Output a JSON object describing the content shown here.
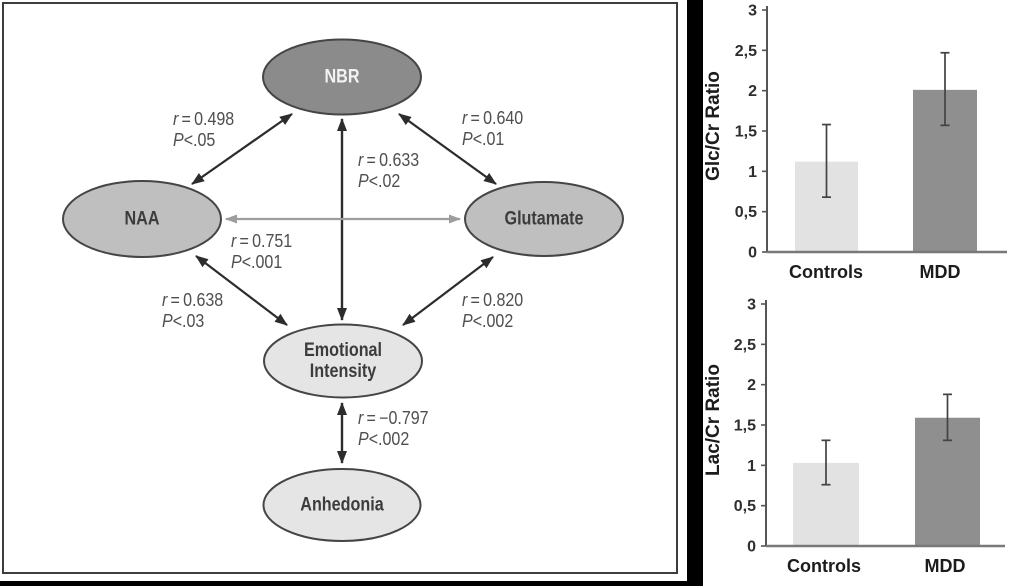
{
  "palette": {
    "background": "#000000",
    "panel": "#ffffff",
    "panel_border": "#3d3d3d",
    "node_dark_fill": "#8b8b8b",
    "node_mid_fill": "#bfbfbf",
    "node_light_fill": "#e5e5e5",
    "node_stroke": "#454545",
    "arrow_black": "#2c2c2c",
    "arrow_gray": "#9d9d9d",
    "edge_label_color": "#4f4f4f"
  },
  "diagram": {
    "nodes": [
      {
        "id": "nbr",
        "label": "NBR",
        "lines": [
          "NBR"
        ]
      },
      {
        "id": "naa",
        "label": "NAA",
        "lines": [
          "NAA"
        ]
      },
      {
        "id": "glutamate",
        "label": "Glutamate",
        "lines": [
          "Glutamate"
        ]
      },
      {
        "id": "emotional-intensity",
        "label": "Emotional Intensity",
        "lines": [
          "Emotional",
          "Intensity"
        ]
      },
      {
        "id": "anhedonia",
        "label": "Anhedonia",
        "lines": [
          "Anhedonia"
        ]
      }
    ],
    "edges": [
      {
        "from": "naa",
        "to": "nbr",
        "r_var": "r",
        "r_rest": " = 0.498",
        "p_var": "P",
        "p_rest": "<.05"
      },
      {
        "from": "nbr",
        "to": "glutamate",
        "r_var": "r",
        "r_rest": " = 0.640",
        "p_var": "P",
        "p_rest": "<.01"
      },
      {
        "from": "nbr",
        "to": "emotional-intensity",
        "r_var": "r",
        "r_rest": " = 0.633",
        "p_var": "P",
        "p_rest": "<.02"
      },
      {
        "from": "naa",
        "to": "glutamate",
        "r_var": "r",
        "r_rest": " = 0.751",
        "p_var": "P",
        "p_rest": "<.001"
      },
      {
        "from": "naa",
        "to": "emotional-intensity",
        "r_var": "r",
        "r_rest": " = 0.638",
        "p_var": "P",
        "p_rest": "<.03"
      },
      {
        "from": "glutamate",
        "to": "emotional-intensity",
        "r_var": "r",
        "r_rest": " = 0.820",
        "p_var": "P",
        "p_rest": "<.002"
      },
      {
        "from": "emotional-intensity",
        "to": "anhedonia",
        "r_var": "r",
        "r_rest": " = −0.797",
        "p_var": "P",
        "p_rest": "<.002"
      }
    ]
  },
  "chart_data": [
    {
      "type": "bar",
      "title": "",
      "ylabel": "Glc/Cr Ratio",
      "xlabel": "",
      "categories": [
        "Controls",
        "MDD"
      ],
      "values": [
        1.12,
        2.01
      ],
      "error_low": [
        0.68,
        1.57
      ],
      "error_high": [
        1.58,
        2.47
      ],
      "ylim": [
        0,
        3
      ],
      "ytick_step": 0.5,
      "ytick_labels": [
        "0",
        "0,5",
        "1",
        "1,5",
        "2",
        "2,5",
        "3"
      ],
      "bar_colors": [
        "#e2e2e2",
        "#8f8f8f"
      ],
      "grid": "off",
      "legend": "none"
    },
    {
      "type": "bar",
      "title": "",
      "ylabel": "Lac/Cr Ratio",
      "xlabel": "",
      "categories": [
        "Controls",
        "MDD"
      ],
      "values": [
        1.03,
        1.59
      ],
      "error_low": [
        0.76,
        1.31
      ],
      "error_high": [
        1.31,
        1.88
      ],
      "ylim": [
        0,
        3
      ],
      "ytick_step": 0.5,
      "ytick_labels": [
        "0",
        "0,5",
        "1",
        "1,5",
        "2",
        "2,5",
        "3"
      ],
      "bar_colors": [
        "#e2e2e2",
        "#8f8f8f"
      ],
      "grid": "off",
      "legend": "none"
    }
  ]
}
